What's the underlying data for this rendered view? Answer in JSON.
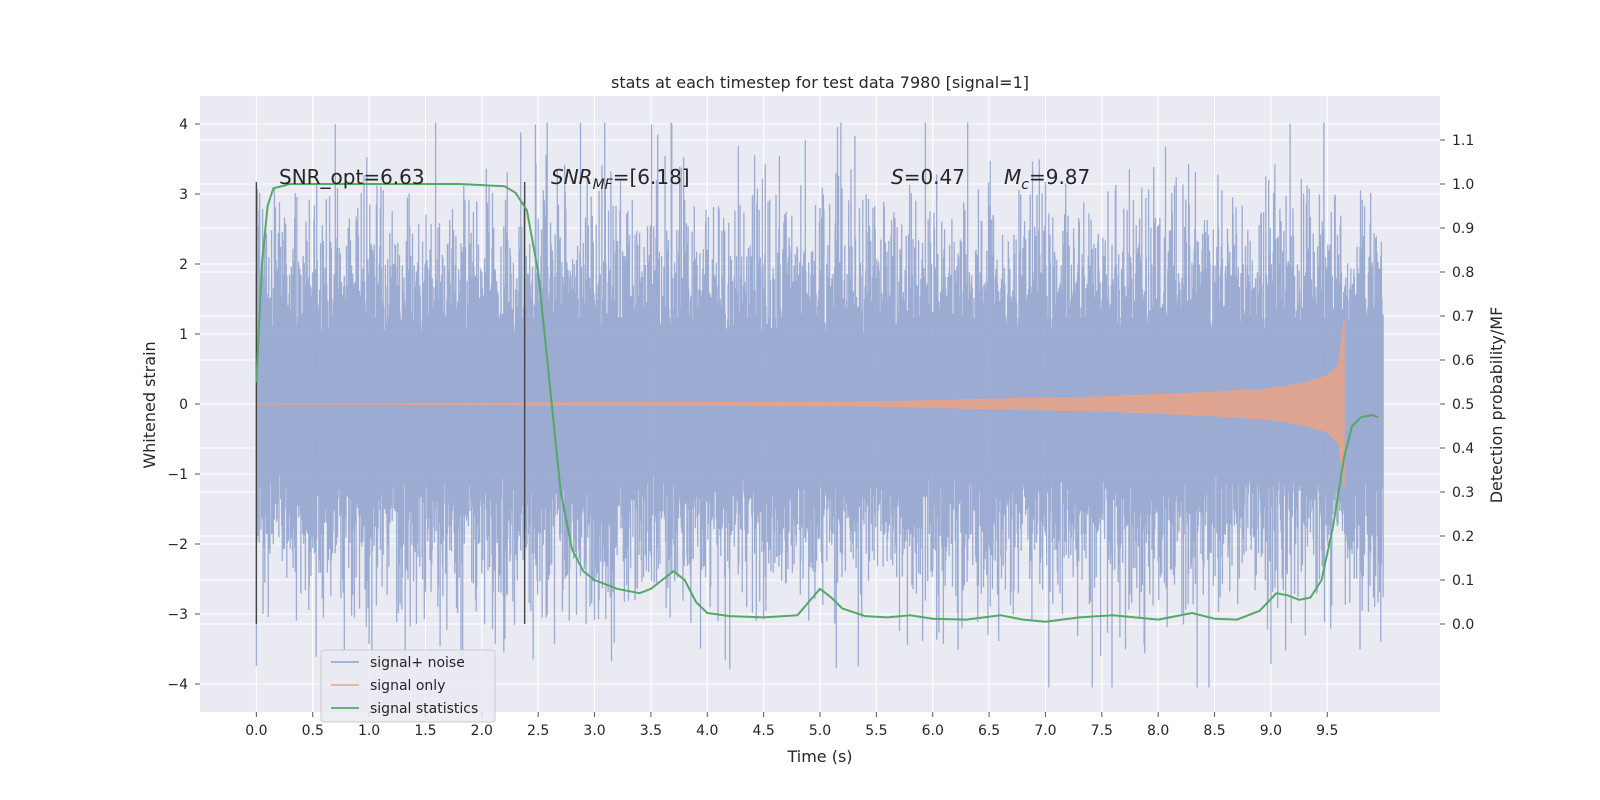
{
  "chart_data": {
    "type": "line",
    "title": "stats at each timestep for test data 7980 [signal=1]",
    "xlabel": "Time (s)",
    "ylabel": "Whitened strain",
    "ylabel_right": "Detection probability/MF",
    "xlim": [
      -0.5,
      10.5
    ],
    "ylim": [
      -4.4,
      4.4
    ],
    "ylim_right": [
      -0.2,
      1.2
    ],
    "x_ticks": [
      "0.0",
      "0.5",
      "1.0",
      "1.5",
      "2.0",
      "2.5",
      "3.0",
      "3.5",
      "4.0",
      "4.5",
      "5.0",
      "5.5",
      "6.0",
      "6.5",
      "7.0",
      "7.5",
      "8.0",
      "8.5",
      "9.0",
      "9.5"
    ],
    "y_ticks": [
      "4",
      "3",
      "2",
      "1",
      "0",
      "−1",
      "−2",
      "−3",
      "−4"
    ],
    "y_ticks_right": [
      "1.1",
      "1.0",
      "0.9",
      "0.8",
      "0.7",
      "0.6",
      "0.5",
      "0.4",
      "0.3",
      "0.2",
      "0.1",
      "0.0"
    ],
    "grid": true,
    "background": "#eaeaf2",
    "legend_placement": "lower-left",
    "annotations": {
      "snr_opt": "SNR_opt=6.63",
      "snr_mf_base": "SNR",
      "snr_mf_sub": "MF",
      "snr_mf_value": "=[6.18]",
      "s_sym": "S",
      "s_value": "=0.47",
      "mc_sym": "M",
      "mc_sub": "c",
      "mc_value": "=9.87"
    },
    "vertical_markers": [
      0.0,
      2.38
    ],
    "series": [
      {
        "name": "signal+ noise",
        "color": "#8da0cb",
        "axis": "left",
        "x_range": [
          0.0,
          10.0
        ],
        "approx_sigma": 1.0,
        "peak_max": 4.02,
        "peak_min": -4.05
      },
      {
        "name": "signal only",
        "color": "#e5a38b",
        "axis": "left",
        "x_range": [
          0.0,
          9.65
        ],
        "envelope": [
          [
            0.0,
            0.0
          ],
          [
            5.5,
            0.03
          ],
          [
            6.5,
            0.07
          ],
          [
            7.5,
            0.1
          ],
          [
            8.5,
            0.17
          ],
          [
            9.0,
            0.22
          ],
          [
            9.3,
            0.3
          ],
          [
            9.5,
            0.4
          ],
          [
            9.6,
            0.55
          ],
          [
            9.65,
            1.2
          ]
        ]
      },
      {
        "name": "signal statistics",
        "color": "#55a868",
        "axis": "right",
        "points": [
          [
            0.0,
            0.55
          ],
          [
            0.05,
            0.82
          ],
          [
            0.1,
            0.95
          ],
          [
            0.15,
            0.99
          ],
          [
            0.3,
            1.0
          ],
          [
            1.0,
            1.0
          ],
          [
            1.8,
            1.0
          ],
          [
            2.2,
            0.995
          ],
          [
            2.3,
            0.98
          ],
          [
            2.4,
            0.94
          ],
          [
            2.5,
            0.8
          ],
          [
            2.6,
            0.55
          ],
          [
            2.7,
            0.3
          ],
          [
            2.8,
            0.17
          ],
          [
            2.9,
            0.12
          ],
          [
            3.0,
            0.1
          ],
          [
            3.2,
            0.08
          ],
          [
            3.4,
            0.07
          ],
          [
            3.5,
            0.08
          ],
          [
            3.6,
            0.1
          ],
          [
            3.7,
            0.12
          ],
          [
            3.8,
            0.1
          ],
          [
            3.9,
            0.05
          ],
          [
            4.0,
            0.025
          ],
          [
            4.2,
            0.018
          ],
          [
            4.5,
            0.015
          ],
          [
            4.8,
            0.02
          ],
          [
            4.9,
            0.05
          ],
          [
            5.0,
            0.08
          ],
          [
            5.1,
            0.06
          ],
          [
            5.2,
            0.035
          ],
          [
            5.4,
            0.018
          ],
          [
            5.6,
            0.015
          ],
          [
            5.8,
            0.02
          ],
          [
            6.0,
            0.012
          ],
          [
            6.3,
            0.01
          ],
          [
            6.6,
            0.02
          ],
          [
            6.8,
            0.01
          ],
          [
            7.0,
            0.005
          ],
          [
            7.3,
            0.015
          ],
          [
            7.6,
            0.02
          ],
          [
            8.0,
            0.01
          ],
          [
            8.3,
            0.025
          ],
          [
            8.5,
            0.012
          ],
          [
            8.7,
            0.01
          ],
          [
            8.9,
            0.03
          ],
          [
            9.05,
            0.07
          ],
          [
            9.15,
            0.065
          ],
          [
            9.25,
            0.055
          ],
          [
            9.35,
            0.06
          ],
          [
            9.45,
            0.1
          ],
          [
            9.55,
            0.22
          ],
          [
            9.65,
            0.38
          ],
          [
            9.72,
            0.45
          ],
          [
            9.8,
            0.47
          ],
          [
            9.9,
            0.475
          ],
          [
            9.95,
            0.47
          ]
        ]
      }
    ]
  }
}
